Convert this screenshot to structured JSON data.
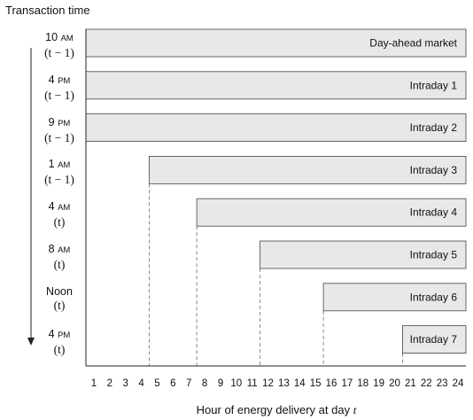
{
  "y_axis_title": "Transaction time",
  "x_axis_title": "Hour of energy delivery at day t",
  "x_axis_variable": "t",
  "colors": {
    "bar_fill": "#e8e8e8",
    "bar_stroke": "#444444",
    "dash": "#888888"
  },
  "chart_data": {
    "type": "bar",
    "orientation": "horizontal-ranges",
    "x_range": [
      1,
      24
    ],
    "x_ticks": [
      1,
      2,
      3,
      4,
      5,
      6,
      7,
      8,
      9,
      10,
      11,
      12,
      13,
      14,
      15,
      16,
      17,
      18,
      19,
      20,
      21,
      22,
      23,
      24
    ],
    "markets": [
      {
        "name": "Day-ahead market",
        "time_line1": "10 AM",
        "time_line2": "(t − 1)",
        "first_hour": 1
      },
      {
        "name": "Intraday 1",
        "time_line1": "4 PM",
        "time_line2": "(t − 1)",
        "first_hour": 1
      },
      {
        "name": "Intraday 2",
        "time_line1": "9 PM",
        "time_line2": "(t − 1)",
        "first_hour": 1
      },
      {
        "name": "Intraday 3",
        "time_line1": "1 AM",
        "time_line2": "(t − 1)",
        "first_hour": 5
      },
      {
        "name": "Intraday 4",
        "time_line1": "4 AM",
        "time_line2": "(t)",
        "first_hour": 8
      },
      {
        "name": "Intraday 5",
        "time_line1": "8 AM",
        "time_line2": "(t)",
        "first_hour": 12
      },
      {
        "name": "Intraday 6",
        "time_line1": "Noon",
        "time_line2": "(t)",
        "first_hour": 16
      },
      {
        "name": "Intraday 7",
        "time_line1": "4 PM",
        "time_line2": "(t)",
        "first_hour": 21
      }
    ]
  }
}
